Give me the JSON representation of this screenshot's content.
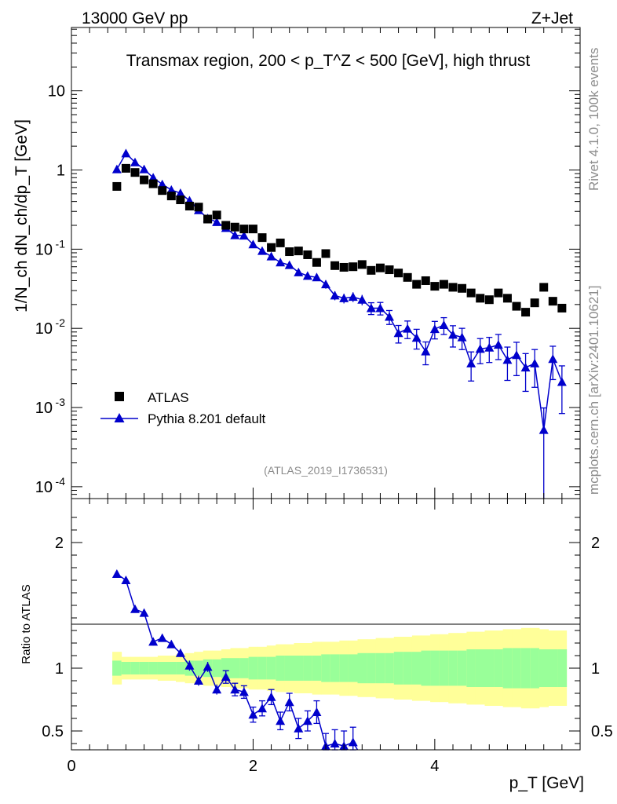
{
  "header": {
    "left": "13000 GeV pp",
    "right": "Z+Jet"
  },
  "side_labels": {
    "rivet": "Rivet 4.1.0,  100k events",
    "mcplots": "mcplots.cern.ch [arXiv:2401.10621]"
  },
  "colors": {
    "atlas": "#000000",
    "pythia": "#0000cc",
    "band_inner": "#99ff99",
    "band_outer": "#ffff99"
  },
  "chart_data": [
    {
      "type": "scatter",
      "name": "main",
      "title": "Transmax region, 200 < p_T^Z < 500 [GeV], high thrust",
      "ylabel": "1/N_ch dN_ch/dp_T [GeV]",
      "xlim": [
        0,
        5.6
      ],
      "ylim_log10": [
        -4.15,
        1.8
      ],
      "yscale": "log",
      "ytick_labels": [
        "10",
        "1",
        "10^{-1}",
        "10^{-2}",
        "10^{-3}",
        "10^{-4}"
      ],
      "analysis_label": "(ATLAS_2019_I1736531)",
      "legend": {
        "position": "lower-left",
        "entries": [
          "ATLAS",
          "Pythia 8.201 default"
        ]
      },
      "x": [
        0.5,
        0.6,
        0.7,
        0.8,
        0.9,
        1.0,
        1.1,
        1.2,
        1.3,
        1.4,
        1.5,
        1.6,
        1.7,
        1.8,
        1.9,
        2.0,
        2.1,
        2.2,
        2.3,
        2.4,
        2.5,
        2.6,
        2.7,
        2.8,
        2.9,
        3.0,
        3.1,
        3.2,
        3.3,
        3.4,
        3.5,
        3.6,
        3.7,
        3.8,
        3.9,
        4.0,
        4.1,
        4.2,
        4.3,
        4.4,
        4.5,
        4.6,
        4.7,
        4.8,
        4.9,
        5.0,
        5.1,
        5.2,
        5.3,
        5.4
      ],
      "series": [
        {
          "name": "ATLAS",
          "marker": "square",
          "values": [
            0.62,
            1.05,
            0.93,
            0.75,
            0.67,
            0.55,
            0.47,
            0.42,
            0.35,
            0.34,
            0.24,
            0.27,
            0.2,
            0.19,
            0.18,
            0.18,
            0.14,
            0.105,
            0.12,
            0.093,
            0.095,
            0.085,
            0.068,
            0.088,
            0.062,
            0.059,
            0.06,
            0.064,
            0.054,
            0.058,
            0.055,
            0.05,
            0.044,
            0.036,
            0.04,
            0.034,
            0.036,
            0.033,
            0.032,
            0.028,
            0.024,
            0.023,
            0.028,
            0.024,
            0.019,
            0.016,
            0.021,
            0.033,
            0.022,
            0.018
          ]
        },
        {
          "name": "Pythia 8.201 default",
          "marker": "triangle",
          "values": [
            1.02,
            1.62,
            1.25,
            1.02,
            0.8,
            0.66,
            0.56,
            0.51,
            0.41,
            0.31,
            0.245,
            0.22,
            0.185,
            0.15,
            0.148,
            0.115,
            0.095,
            0.081,
            0.068,
            0.063,
            0.051,
            0.046,
            0.044,
            0.036,
            0.026,
            0.024,
            0.025,
            0.023,
            0.018,
            0.018,
            0.014,
            0.0087,
            0.0099,
            0.0076,
            0.0051,
            0.0098,
            0.011,
            0.0083,
            0.0077,
            0.0036,
            0.0055,
            0.0057,
            0.0062,
            0.004,
            0.0046,
            0.0032,
            0.0036,
            0.00052,
            0.0041,
            0.0021
          ],
          "yerr_rel": [
            0.02,
            0.02,
            0.02,
            0.02,
            0.02,
            0.03,
            0.03,
            0.03,
            0.04,
            0.04,
            0.04,
            0.05,
            0.05,
            0.05,
            0.06,
            0.06,
            0.07,
            0.07,
            0.08,
            0.08,
            0.09,
            0.1,
            0.1,
            0.12,
            0.13,
            0.14,
            0.14,
            0.15,
            0.17,
            0.18,
            0.2,
            0.25,
            0.25,
            0.28,
            0.32,
            0.25,
            0.24,
            0.3,
            0.3,
            0.4,
            0.35,
            0.35,
            0.35,
            0.45,
            0.45,
            0.5,
            0.5,
            0.9,
            0.45,
            0.6
          ]
        }
      ]
    },
    {
      "type": "scatter",
      "name": "ratio",
      "ylabel": "Ratio to ATLAS",
      "xlabel": "p_T [GeV]",
      "xlim": [
        0,
        5.6
      ],
      "ylim": [
        0.35,
        2.35
      ],
      "xtick_labels": [
        "0",
        "2",
        "4"
      ],
      "ytick_labels": [
        "0.5",
        "1",
        "2"
      ],
      "band_x_edges": [
        0.45,
        0.55,
        0.65,
        0.75,
        0.85,
        0.95,
        1.05,
        1.15,
        1.25,
        1.35,
        1.45,
        1.55,
        1.65,
        1.75,
        1.85,
        1.95,
        2.05,
        2.15,
        2.25,
        2.35,
        2.45,
        2.55,
        2.65,
        2.75,
        2.85,
        2.95,
        3.05,
        3.15,
        3.25,
        3.35,
        3.45,
        3.55,
        3.65,
        3.75,
        3.85,
        3.95,
        4.05,
        4.15,
        4.25,
        4.35,
        4.45,
        4.55,
        4.65,
        4.75,
        4.85,
        4.95,
        5.05,
        5.15,
        5.25,
        5.35,
        5.45
      ],
      "band_inner_halfwidth": [
        0.06,
        0.05,
        0.05,
        0.05,
        0.05,
        0.05,
        0.05,
        0.05,
        0.06,
        0.06,
        0.07,
        0.07,
        0.08,
        0.08,
        0.08,
        0.09,
        0.09,
        0.09,
        0.1,
        0.1,
        0.1,
        0.1,
        0.1,
        0.11,
        0.11,
        0.11,
        0.11,
        0.12,
        0.12,
        0.12,
        0.12,
        0.13,
        0.13,
        0.13,
        0.14,
        0.14,
        0.14,
        0.14,
        0.14,
        0.15,
        0.15,
        0.15,
        0.15,
        0.16,
        0.16,
        0.16,
        0.16,
        0.15,
        0.15,
        0.15
      ],
      "band_outer_halfwidth": [
        0.13,
        0.09,
        0.09,
        0.09,
        0.09,
        0.1,
        0.1,
        0.11,
        0.12,
        0.13,
        0.14,
        0.14,
        0.15,
        0.16,
        0.16,
        0.17,
        0.17,
        0.18,
        0.19,
        0.19,
        0.2,
        0.2,
        0.21,
        0.21,
        0.21,
        0.22,
        0.22,
        0.23,
        0.23,
        0.24,
        0.24,
        0.25,
        0.25,
        0.26,
        0.26,
        0.27,
        0.27,
        0.28,
        0.28,
        0.29,
        0.29,
        0.3,
        0.3,
        0.31,
        0.31,
        0.32,
        0.32,
        0.31,
        0.3,
        0.3
      ],
      "x": [
        0.5,
        0.6,
        0.7,
        0.8,
        0.9,
        1.0,
        1.1,
        1.2,
        1.3,
        1.4,
        1.5,
        1.6,
        1.7,
        1.8,
        1.9,
        2.0,
        2.1,
        2.2,
        2.3,
        2.4,
        2.5,
        2.6,
        2.7,
        2.8,
        2.9,
        3.0,
        3.1
      ],
      "ratio": [
        1.75,
        1.7,
        1.47,
        1.44,
        1.21,
        1.24,
        1.19,
        1.12,
        1.02,
        0.9,
        1.01,
        0.83,
        0.93,
        0.83,
        0.81,
        0.63,
        0.68,
        0.77,
        0.58,
        0.73,
        0.52,
        0.58,
        0.65,
        0.38,
        0.4,
        0.38,
        0.41
      ],
      "ratio_err": [
        0.02,
        0.02,
        0.02,
        0.02,
        0.03,
        0.03,
        0.03,
        0.03,
        0.04,
        0.04,
        0.04,
        0.04,
        0.05,
        0.05,
        0.05,
        0.06,
        0.06,
        0.06,
        0.07,
        0.07,
        0.08,
        0.08,
        0.09,
        0.1,
        0.11,
        0.12,
        0.12
      ]
    }
  ]
}
